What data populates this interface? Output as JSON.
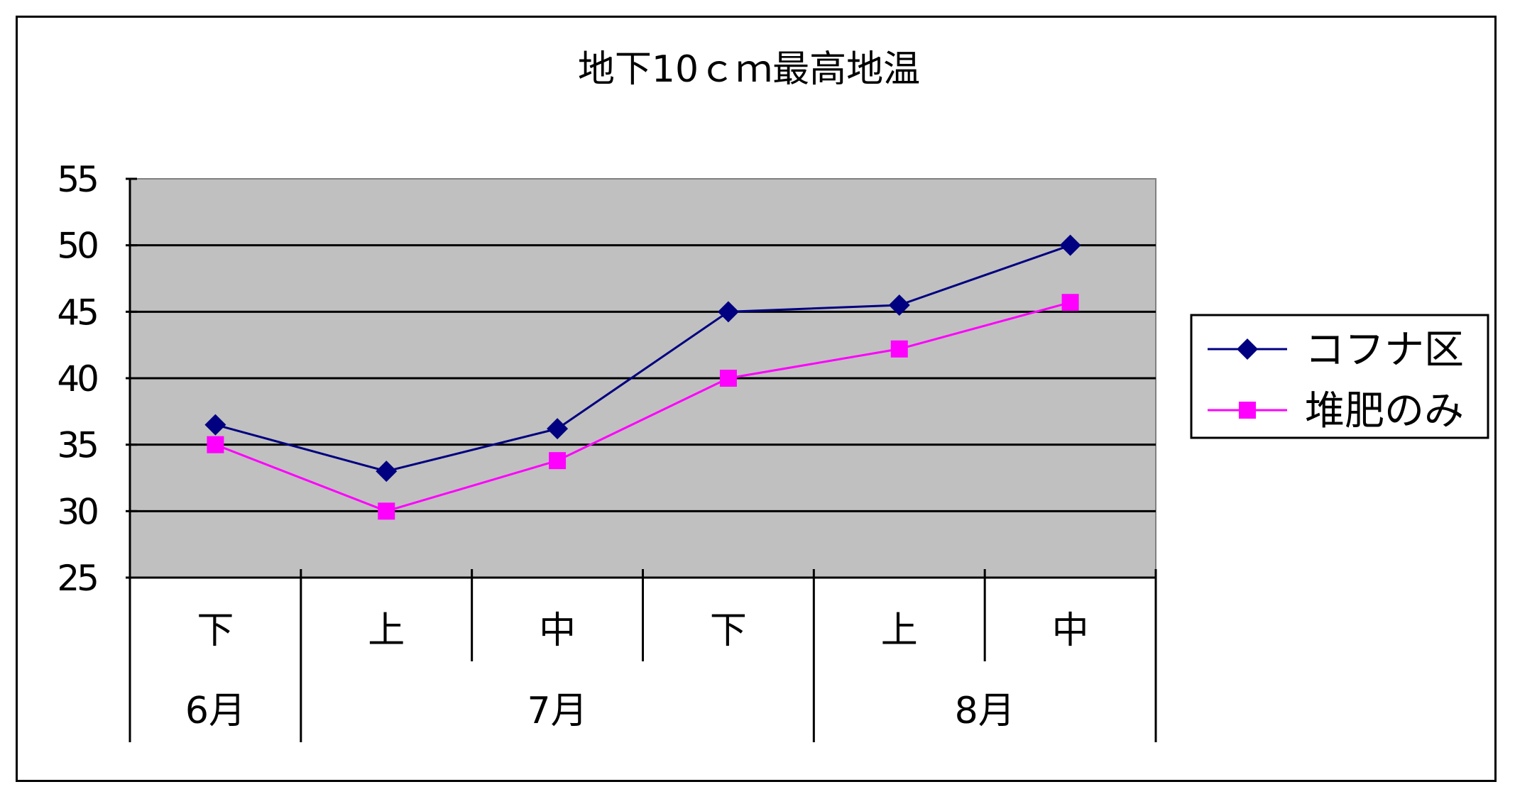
{
  "chart_data": {
    "type": "line",
    "title": "地下10ｃｍ最高地温",
    "xlabel": "",
    "ylabel": "",
    "ylim": [
      25,
      55
    ],
    "yticks": [
      25,
      30,
      35,
      40,
      45,
      50,
      55
    ],
    "grid": true,
    "plot_background": "#c0c0c0",
    "legend_position": "right",
    "categories": [
      "下",
      "上",
      "中",
      "下",
      "上",
      "中"
    ],
    "category_groups": [
      {
        "label": "6月",
        "span": 1
      },
      {
        "label": "7月",
        "span": 3
      },
      {
        "label": "8月",
        "span": 2
      }
    ],
    "series": [
      {
        "name": "コフナ区",
        "values": [
          36.5,
          33.0,
          36.2,
          45.0,
          45.5,
          50.0
        ],
        "color": "#000080",
        "marker": "diamond"
      },
      {
        "name": "堆肥のみ",
        "values": [
          35.0,
          30.0,
          33.8,
          40.0,
          42.2,
          45.7
        ],
        "color": "#ff00ff",
        "marker": "square"
      }
    ]
  }
}
